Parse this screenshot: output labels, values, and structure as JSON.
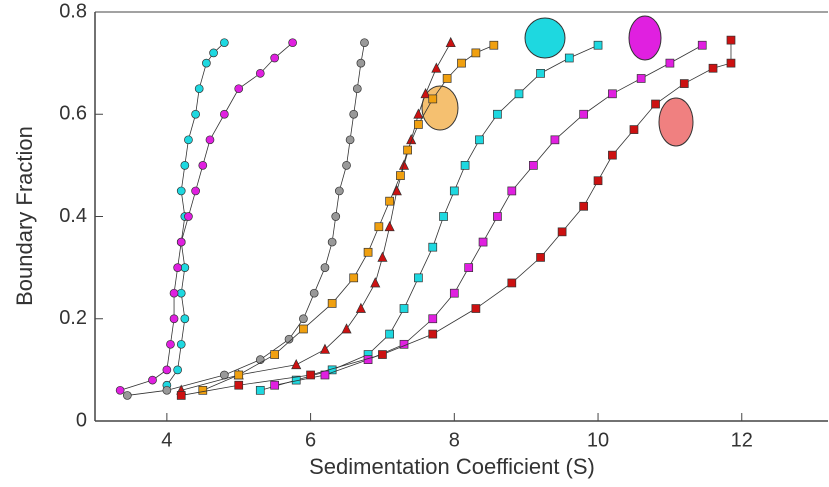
{
  "chart_data": {
    "type": "scatter",
    "x_label": "Sedimentation Coefficient (S)",
    "y_label": "Boundary Fraction",
    "xlim": [
      3,
      13.2
    ],
    "ylim": [
      0,
      0.8
    ],
    "xticks": [
      4,
      6,
      8,
      10,
      12
    ],
    "yticks": [
      0,
      0.2,
      0.4,
      0.6,
      0.8
    ],
    "series": [
      {
        "color": "#1ed8e0",
        "marker": "circle",
        "x": [
          4.0,
          4.15,
          4.2,
          4.25,
          4.2,
          4.25,
          4.2,
          4.25,
          4.2,
          4.25,
          4.3,
          4.4,
          4.45,
          4.55,
          4.65,
          4.8
        ],
        "values": [
          0.07,
          0.1,
          0.15,
          0.2,
          0.25,
          0.3,
          0.35,
          0.4,
          0.45,
          0.5,
          0.55,
          0.6,
          0.65,
          0.7,
          0.72,
          0.74
        ]
      },
      {
        "color": "#e020e0",
        "marker": "circle",
        "x": [
          3.35,
          3.8,
          4.0,
          4.05,
          4.1,
          4.1,
          4.15,
          4.2,
          4.3,
          4.4,
          4.5,
          4.6,
          4.8,
          5.0,
          5.3,
          5.5,
          5.75
        ],
        "values": [
          0.06,
          0.08,
          0.1,
          0.15,
          0.2,
          0.25,
          0.3,
          0.35,
          0.4,
          0.45,
          0.5,
          0.55,
          0.6,
          0.65,
          0.68,
          0.71,
          0.74
        ]
      },
      {
        "color": "#999999",
        "marker": "circle",
        "x": [
          3.45,
          4.0,
          4.8,
          5.3,
          5.7,
          5.9,
          6.05,
          6.2,
          6.3,
          6.35,
          6.4,
          6.5,
          6.55,
          6.6,
          6.65,
          6.7,
          6.75
        ],
        "values": [
          0.05,
          0.06,
          0.09,
          0.12,
          0.16,
          0.2,
          0.25,
          0.3,
          0.35,
          0.4,
          0.45,
          0.5,
          0.55,
          0.6,
          0.65,
          0.7,
          0.74
        ]
      },
      {
        "color": "#cc1111",
        "marker": "triangle",
        "x": [
          4.2,
          5.0,
          5.8,
          6.2,
          6.5,
          6.7,
          6.9,
          7.0,
          7.1,
          7.2,
          7.3,
          7.4,
          7.5,
          7.6,
          7.75,
          7.95
        ],
        "values": [
          0.06,
          0.09,
          0.11,
          0.14,
          0.18,
          0.22,
          0.27,
          0.32,
          0.38,
          0.45,
          0.5,
          0.55,
          0.6,
          0.64,
          0.69,
          0.74
        ]
      },
      {
        "color": "#f0a010",
        "marker": "square",
        "x": [
          4.5,
          5.0,
          5.5,
          5.9,
          6.3,
          6.6,
          6.8,
          6.95,
          7.1,
          7.25,
          7.35,
          7.5,
          7.7,
          7.9,
          8.1,
          8.3,
          8.55
        ],
        "values": [
          0.06,
          0.09,
          0.13,
          0.18,
          0.23,
          0.28,
          0.33,
          0.38,
          0.43,
          0.48,
          0.53,
          0.58,
          0.63,
          0.67,
          0.7,
          0.72,
          0.735
        ]
      },
      {
        "color": "#1ed8e0",
        "marker": "square",
        "x": [
          5.3,
          5.8,
          6.3,
          6.8,
          7.1,
          7.3,
          7.5,
          7.7,
          7.85,
          8.0,
          8.15,
          8.35,
          8.6,
          8.9,
          9.2,
          9.6,
          10.0
        ],
        "values": [
          0.06,
          0.08,
          0.1,
          0.13,
          0.17,
          0.22,
          0.28,
          0.34,
          0.4,
          0.45,
          0.5,
          0.55,
          0.6,
          0.64,
          0.68,
          0.71,
          0.735
        ]
      },
      {
        "color": "#e020e0",
        "marker": "square",
        "x": [
          5.5,
          6.2,
          6.8,
          7.3,
          7.7,
          8.0,
          8.2,
          8.4,
          8.6,
          8.8,
          9.1,
          9.4,
          9.8,
          10.2,
          10.6,
          11.0,
          11.45
        ],
        "values": [
          0.07,
          0.09,
          0.12,
          0.15,
          0.2,
          0.25,
          0.3,
          0.35,
          0.4,
          0.45,
          0.5,
          0.55,
          0.6,
          0.64,
          0.67,
          0.7,
          0.735
        ]
      },
      {
        "color": "#cc1111",
        "marker": "square",
        "x": [
          4.2,
          5.0,
          6.0,
          7.0,
          7.7,
          8.3,
          8.8,
          9.2,
          9.5,
          9.8,
          10.0,
          10.2,
          10.5,
          10.8,
          11.2,
          11.6,
          11.85,
          11.85
        ],
        "values": [
          0.05,
          0.07,
          0.09,
          0.13,
          0.17,
          0.22,
          0.27,
          0.32,
          0.37,
          0.42,
          0.47,
          0.52,
          0.57,
          0.62,
          0.66,
          0.69,
          0.7,
          0.745
        ]
      }
    ]
  }
}
